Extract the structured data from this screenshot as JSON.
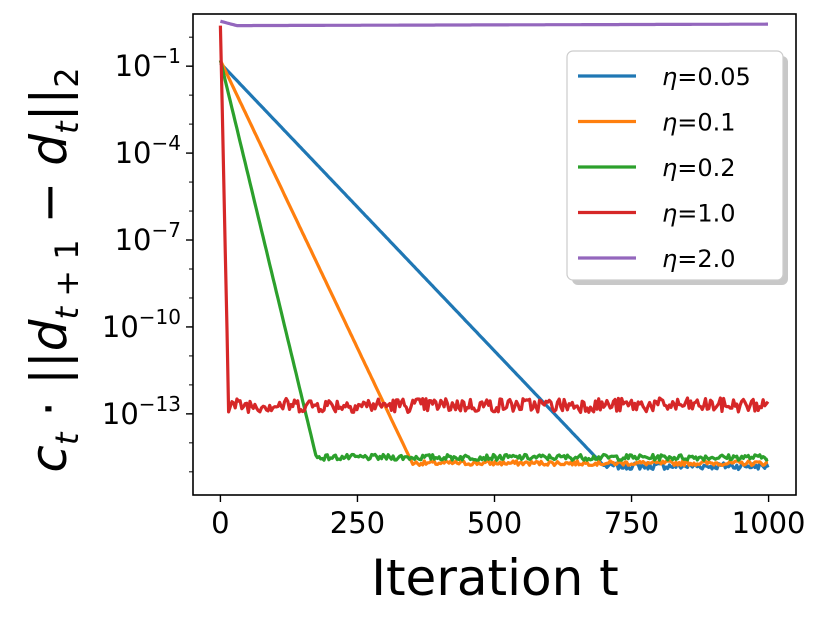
{
  "chart_data": {
    "type": "line",
    "title": "",
    "xlabel": "Iteration t",
    "ylabel": "c_t · ||d_{t+1} − d_t||_2",
    "yscale": "log",
    "xlim": [
      -50,
      1050
    ],
    "ylim_exp": [
      -15.8,
      0.8
    ],
    "x_ticks": [
      {
        "value": 0,
        "label": "0"
      },
      {
        "value": 250,
        "label": "250"
      },
      {
        "value": 500,
        "label": "500"
      },
      {
        "value": 750,
        "label": "750"
      },
      {
        "value": 1000,
        "label": "1000"
      }
    ],
    "y_ticks": [
      {
        "exp": -1,
        "label_base": "10",
        "label_exp": "−1"
      },
      {
        "exp": -4,
        "label_base": "10",
        "label_exp": "−4"
      },
      {
        "exp": -7,
        "label_base": "10",
        "label_exp": "−7"
      },
      {
        "exp": -10,
        "label_base": "10",
        "label_exp": "−10"
      },
      {
        "exp": -13,
        "label_base": "10",
        "label_exp": "−13"
      }
    ],
    "legend_position": "top-right",
    "series": [
      {
        "name": "η=0.05",
        "eta": "0.05",
        "color": "#1f77b4",
        "start_exp": -0.9,
        "converge_iter": 700,
        "floor_exp": -14.8,
        "noise": 0.12,
        "points": [
          [
            0,
            -0.9
          ],
          [
            700,
            -14.8
          ],
          [
            1000,
            -14.8
          ]
        ]
      },
      {
        "name": "η=0.1",
        "eta": "0.1",
        "color": "#ff7f0e",
        "start_exp": -0.8,
        "converge_iter": 350,
        "floor_exp": -14.7,
        "noise": 0.08,
        "points": [
          [
            0,
            -0.8
          ],
          [
            350,
            -14.7
          ],
          [
            1000,
            -14.7
          ]
        ]
      },
      {
        "name": "η=0.2",
        "eta": "0.2",
        "color": "#2ca02c",
        "start_exp": -0.8,
        "converge_iter": 175,
        "floor_exp": -14.5,
        "noise": 0.1,
        "points": [
          [
            0,
            -0.8
          ],
          [
            175,
            -14.5
          ],
          [
            1000,
            -14.5
          ]
        ]
      },
      {
        "name": "η=1.0",
        "eta": "1.0",
        "color": "#d62728",
        "start_exp": 0.4,
        "converge_iter": 15,
        "floor_exp": -12.7,
        "noise": 0.25,
        "points": [
          [
            0,
            0.4
          ],
          [
            15,
            -12.7
          ],
          [
            1000,
            -12.7
          ]
        ]
      },
      {
        "name": "η=2.0",
        "eta": "2.0",
        "color": "#9467bd",
        "start_exp": 0.55,
        "converge_iter": null,
        "floor_exp": 0.4,
        "noise": 0.0,
        "points": [
          [
            0,
            0.55
          ],
          [
            30,
            0.4
          ],
          [
            1000,
            0.45
          ]
        ]
      }
    ]
  }
}
